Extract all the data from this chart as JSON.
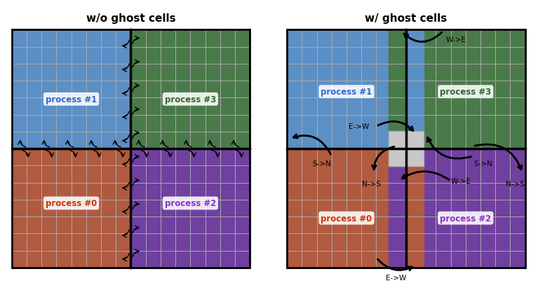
{
  "title_left": "w/o ghost cells",
  "title_right": "w/ ghost cells",
  "colors": {
    "blue": "#5b8fc5",
    "green": "#4a7a4a",
    "red": "#b05a40",
    "purple": "#7040a0",
    "white": "#ffffff",
    "black": "#000000",
    "ghost": "#c8c8c8"
  },
  "process_labels": [
    "process #0",
    "process #1",
    "process #2",
    "process #3"
  ],
  "process_text_colors": [
    "#cc3300",
    "#3366cc",
    "#8833cc",
    "#336633"
  ],
  "grid_line_color": "#aaaaaa"
}
